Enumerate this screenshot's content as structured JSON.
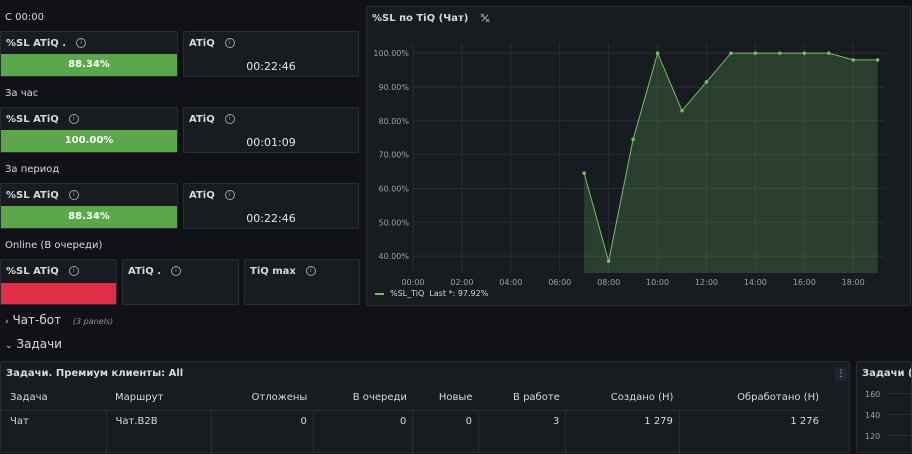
{
  "section_1": {
    "title": "С 00:00"
  },
  "panel_sl_1": {
    "title": "%SL ATiQ .",
    "value": "88.34%"
  },
  "panel_atiq_1": {
    "title": "ATiQ",
    "value": "00:22:46"
  },
  "section_2": {
    "title": "За час"
  },
  "panel_sl_2": {
    "title": "%SL ATiQ",
    "value": "100.00%"
  },
  "panel_atiq_2": {
    "title": "ATiQ",
    "value": "00:01:09"
  },
  "section_3": {
    "title": "За период"
  },
  "panel_sl_3": {
    "title": "%SL ATiQ",
    "value": "88.34%"
  },
  "panel_atiq_3": {
    "title": "ATiQ",
    "value": "00:22:46"
  },
  "section_4": {
    "title": "Online (В очереди)"
  },
  "panel_sl_4": {
    "title": "%SL ATiQ"
  },
  "panel_atiq_4": {
    "title": "ATiQ ."
  },
  "panel_tiq_4": {
    "title": "TiQ max"
  },
  "chart_panel": {
    "title": "%SL по TiQ (Чат)",
    "legend_label": "%SL_TiQ",
    "legend_last": "Last *: 97.92%"
  },
  "chart_data": {
    "type": "area",
    "title": "%SL по TiQ (Чат)",
    "x_ticks": [
      "00:00",
      "02:00",
      "04:00",
      "06:00",
      "08:00",
      "10:00",
      "12:00",
      "14:00",
      "16:00",
      "18:00"
    ],
    "y_ticks": [
      "40.00%",
      "50.00%",
      "60.00%",
      "70.00%",
      "80.00%",
      "90.00%",
      "100.00%"
    ],
    "ylim": [
      35,
      103
    ],
    "xlim": [
      0,
      19.3
    ],
    "series": [
      {
        "name": "%SL_TiQ",
        "x": [
          7,
          8,
          9,
          10,
          11,
          12,
          13,
          14,
          15,
          16,
          17,
          18,
          19
        ],
        "y": [
          64.5,
          38.5,
          74.5,
          100,
          83,
          91.5,
          100,
          100,
          100,
          100,
          100,
          98,
          98
        ]
      }
    ],
    "colors": {
      "line": "#73bf69",
      "fill": "#73bf69"
    }
  },
  "chatbot_row": {
    "title": "Чат-бот",
    "sub": "(3 panels)"
  },
  "tasks_row": {
    "title": "Задачи"
  },
  "tasks_table": {
    "title": "Задачи. Премиум клиенты: All",
    "columns": [
      "Задача",
      "Маршрут",
      "Отложены",
      "В очереди",
      "Новые",
      "В работе",
      "Создано (Н)",
      "Обработано (Н)"
    ],
    "rows": [
      [
        "Чат",
        "Чат.B2B",
        "0",
        "0",
        "0",
        "3",
        "1 279",
        "1 276"
      ]
    ]
  },
  "right_panel": {
    "title": "Задачи (Ча",
    "y_ticks": [
      "160",
      "140",
      "120"
    ]
  }
}
